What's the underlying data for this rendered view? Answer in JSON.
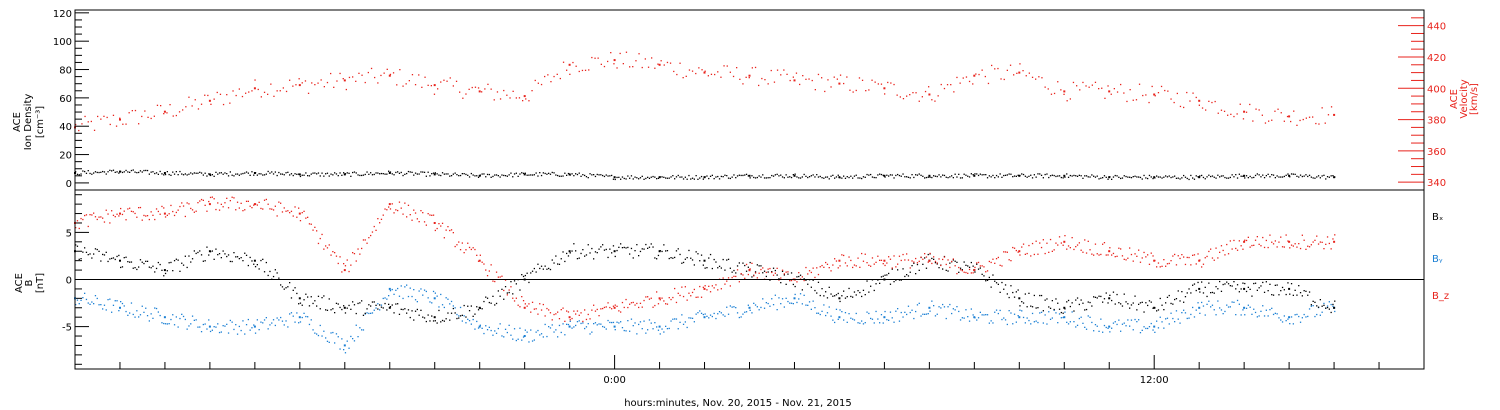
{
  "colors": {
    "black": "#000000",
    "red": "#e8231c",
    "blue": "#1a7fd4"
  },
  "xaxis": {
    "label": "hours:minutes, Nov. 20, 2015 - Nov. 21, 2015",
    "range_hours": [
      -12,
      18
    ],
    "data_end_hour": 16.0,
    "labeled_ticks": [
      {
        "hour": 0,
        "label": "0:00"
      },
      {
        "hour": 12,
        "label": "12:00"
      }
    ]
  },
  "chart_data": [
    {
      "type": "scatter",
      "panel": "top",
      "ylabel_left": [
        "ACE",
        "Ion Density",
        "[cm⁻³]"
      ],
      "ylabel_right": [
        "ACE",
        "Velocity",
        "[km/s]"
      ],
      "ylim_left": [
        -5,
        122
      ],
      "left_ticks": [
        0,
        20,
        40,
        60,
        80,
        100,
        120
      ],
      "ylim_right": [
        335,
        450
      ],
      "right_ticks": [
        340,
        360,
        380,
        400,
        420,
        440
      ],
      "series": [
        {
          "name": "Ion Density",
          "axis": "left",
          "color": "black",
          "x": [
            -12,
            -11,
            -10,
            -9,
            -8,
            -7,
            -6,
            -5,
            -4,
            -3,
            -2,
            -1,
            0,
            1,
            2,
            3,
            4,
            5,
            6,
            7,
            8,
            9,
            10,
            11,
            12,
            13,
            14,
            15,
            16
          ],
          "y": [
            7,
            8,
            7,
            6,
            7,
            6,
            6,
            7,
            6,
            5,
            6,
            6,
            4,
            4,
            4,
            5,
            5,
            4,
            5,
            5,
            5,
            5,
            5,
            4,
            4,
            4,
            5,
            5,
            4
          ]
        },
        {
          "name": "Velocity",
          "axis": "right",
          "color": "red",
          "x": [
            -12,
            -11,
            -10,
            -9,
            -8,
            -7,
            -6,
            -5,
            -4,
            -3,
            -2,
            -1,
            0,
            1,
            2,
            3,
            4,
            5,
            6,
            7,
            8,
            9,
            10,
            11,
            12,
            13,
            14,
            15,
            16
          ],
          "y": [
            375,
            380,
            385,
            392,
            400,
            402,
            405,
            408,
            402,
            398,
            395,
            415,
            418,
            415,
            410,
            408,
            405,
            403,
            400,
            396,
            408,
            410,
            398,
            398,
            396,
            392,
            385,
            382,
            383
          ]
        }
      ]
    },
    {
      "type": "scatter",
      "panel": "bottom",
      "ylabel": [
        "ACE",
        "B",
        "[nT]"
      ],
      "ylim": [
        -9.5,
        9.5
      ],
      "ticks": [
        -5,
        0,
        5
      ],
      "zero_line": true,
      "legend": [
        "Bₓ",
        "Bᵧ",
        "B_z"
      ],
      "legend_placement": "right",
      "series": [
        {
          "name": "Bx",
          "color": "black",
          "x": [
            -12,
            -11,
            -10,
            -9,
            -8,
            -7,
            -6,
            -5,
            -4,
            -3,
            -2,
            -1,
            0,
            1,
            2,
            3,
            4,
            5,
            6,
            7,
            8,
            9,
            10,
            11,
            12,
            13,
            14,
            15,
            16
          ],
          "y": [
            3,
            2,
            1,
            3,
            2,
            -2,
            -3,
            -3,
            -4,
            -3,
            0,
            3,
            3,
            3,
            2,
            1,
            0,
            -2,
            0,
            2,
            1,
            -2,
            -3,
            -2,
            -3,
            -1,
            -1,
            -1,
            -3
          ]
        },
        {
          "name": "By",
          "color": "blue",
          "x": [
            -12,
            -11,
            -10,
            -9,
            -8,
            -7,
            -6,
            -5,
            -4,
            -3,
            -2,
            -1,
            0,
            1,
            2,
            3,
            4,
            5,
            6,
            7,
            8,
            9,
            10,
            11,
            12,
            13,
            14,
            15,
            16
          ],
          "y": [
            -2,
            -3,
            -4,
            -5,
            -5,
            -4,
            -7,
            -1,
            -2,
            -5,
            -6,
            -5,
            -5,
            -5,
            -4,
            -3,
            -2,
            -4,
            -4,
            -3,
            -4,
            -4,
            -4,
            -5,
            -5,
            -3,
            -3,
            -4,
            -3
          ]
        },
        {
          "name": "Bz",
          "color": "red",
          "x": [
            -12,
            -11,
            -10,
            -9,
            -8,
            -7,
            -6,
            -5,
            -4,
            -3,
            -2,
            -1,
            0,
            1,
            2,
            3,
            4,
            5,
            6,
            7,
            8,
            9,
            10,
            11,
            12,
            13,
            14,
            15,
            16
          ],
          "y": [
            6,
            7,
            7,
            8,
            8,
            7,
            1,
            8,
            6,
            2,
            -3,
            -4,
            -3,
            -2,
            -1,
            1,
            0,
            2,
            2,
            2,
            1,
            3,
            4,
            3,
            2,
            2,
            4,
            4,
            4
          ]
        }
      ]
    }
  ]
}
